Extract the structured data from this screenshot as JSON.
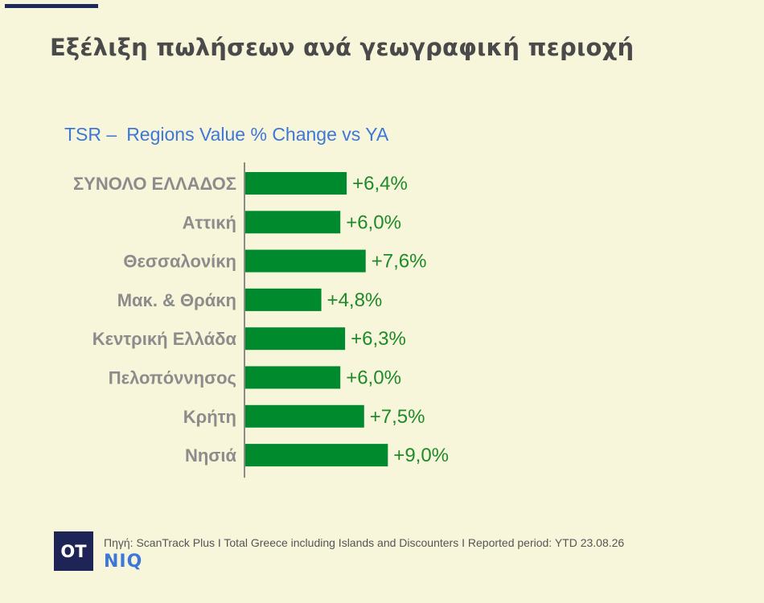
{
  "page": {
    "title": "Εξέλιξη πωλήσεων ανά γεωγραφική περιοχή",
    "subtitle_prefix": "TSR –",
    "subtitle": "Regions Value % Change vs YA",
    "logo_text": "OT",
    "source": "Πηγή: ScanTrack Plus I Total Greece including Islands and Discounters I  Reported period: YTD 23.08.26",
    "brand": "NIQ"
  },
  "colors": {
    "background": "#f7f5da",
    "bar": "#008a2e",
    "value_label": "#1f8a2a",
    "category_label": "#8c8c8c",
    "title": "#4a4a4a",
    "accent_blue": "#3d78d8",
    "logo_bg": "#1e2556"
  },
  "chart_data": {
    "type": "bar",
    "orientation": "horizontal",
    "title": "Regions Value % Change vs YA",
    "categories": [
      "ΣΥΝΟΛΟ ΕΛΛΑΔΟΣ",
      "Αττική",
      "Θεσσαλονίκη",
      "Μακ. & Θράκη",
      "Κεντρική Ελλάδα",
      "Πελοπόννησος",
      "Κρήτη",
      "Νησιά"
    ],
    "values": [
      6.4,
      6.0,
      7.6,
      4.8,
      6.3,
      6.0,
      7.5,
      9.0
    ],
    "value_labels": [
      "+6,4%",
      "+6,0%",
      "+7,6%",
      "+4,8%",
      "+6,3%",
      "+6,0%",
      "+7,5%",
      "+9,0%"
    ],
    "unit": "%",
    "xlim": [
      0,
      32
    ],
    "grid": false,
    "legend": "none"
  }
}
